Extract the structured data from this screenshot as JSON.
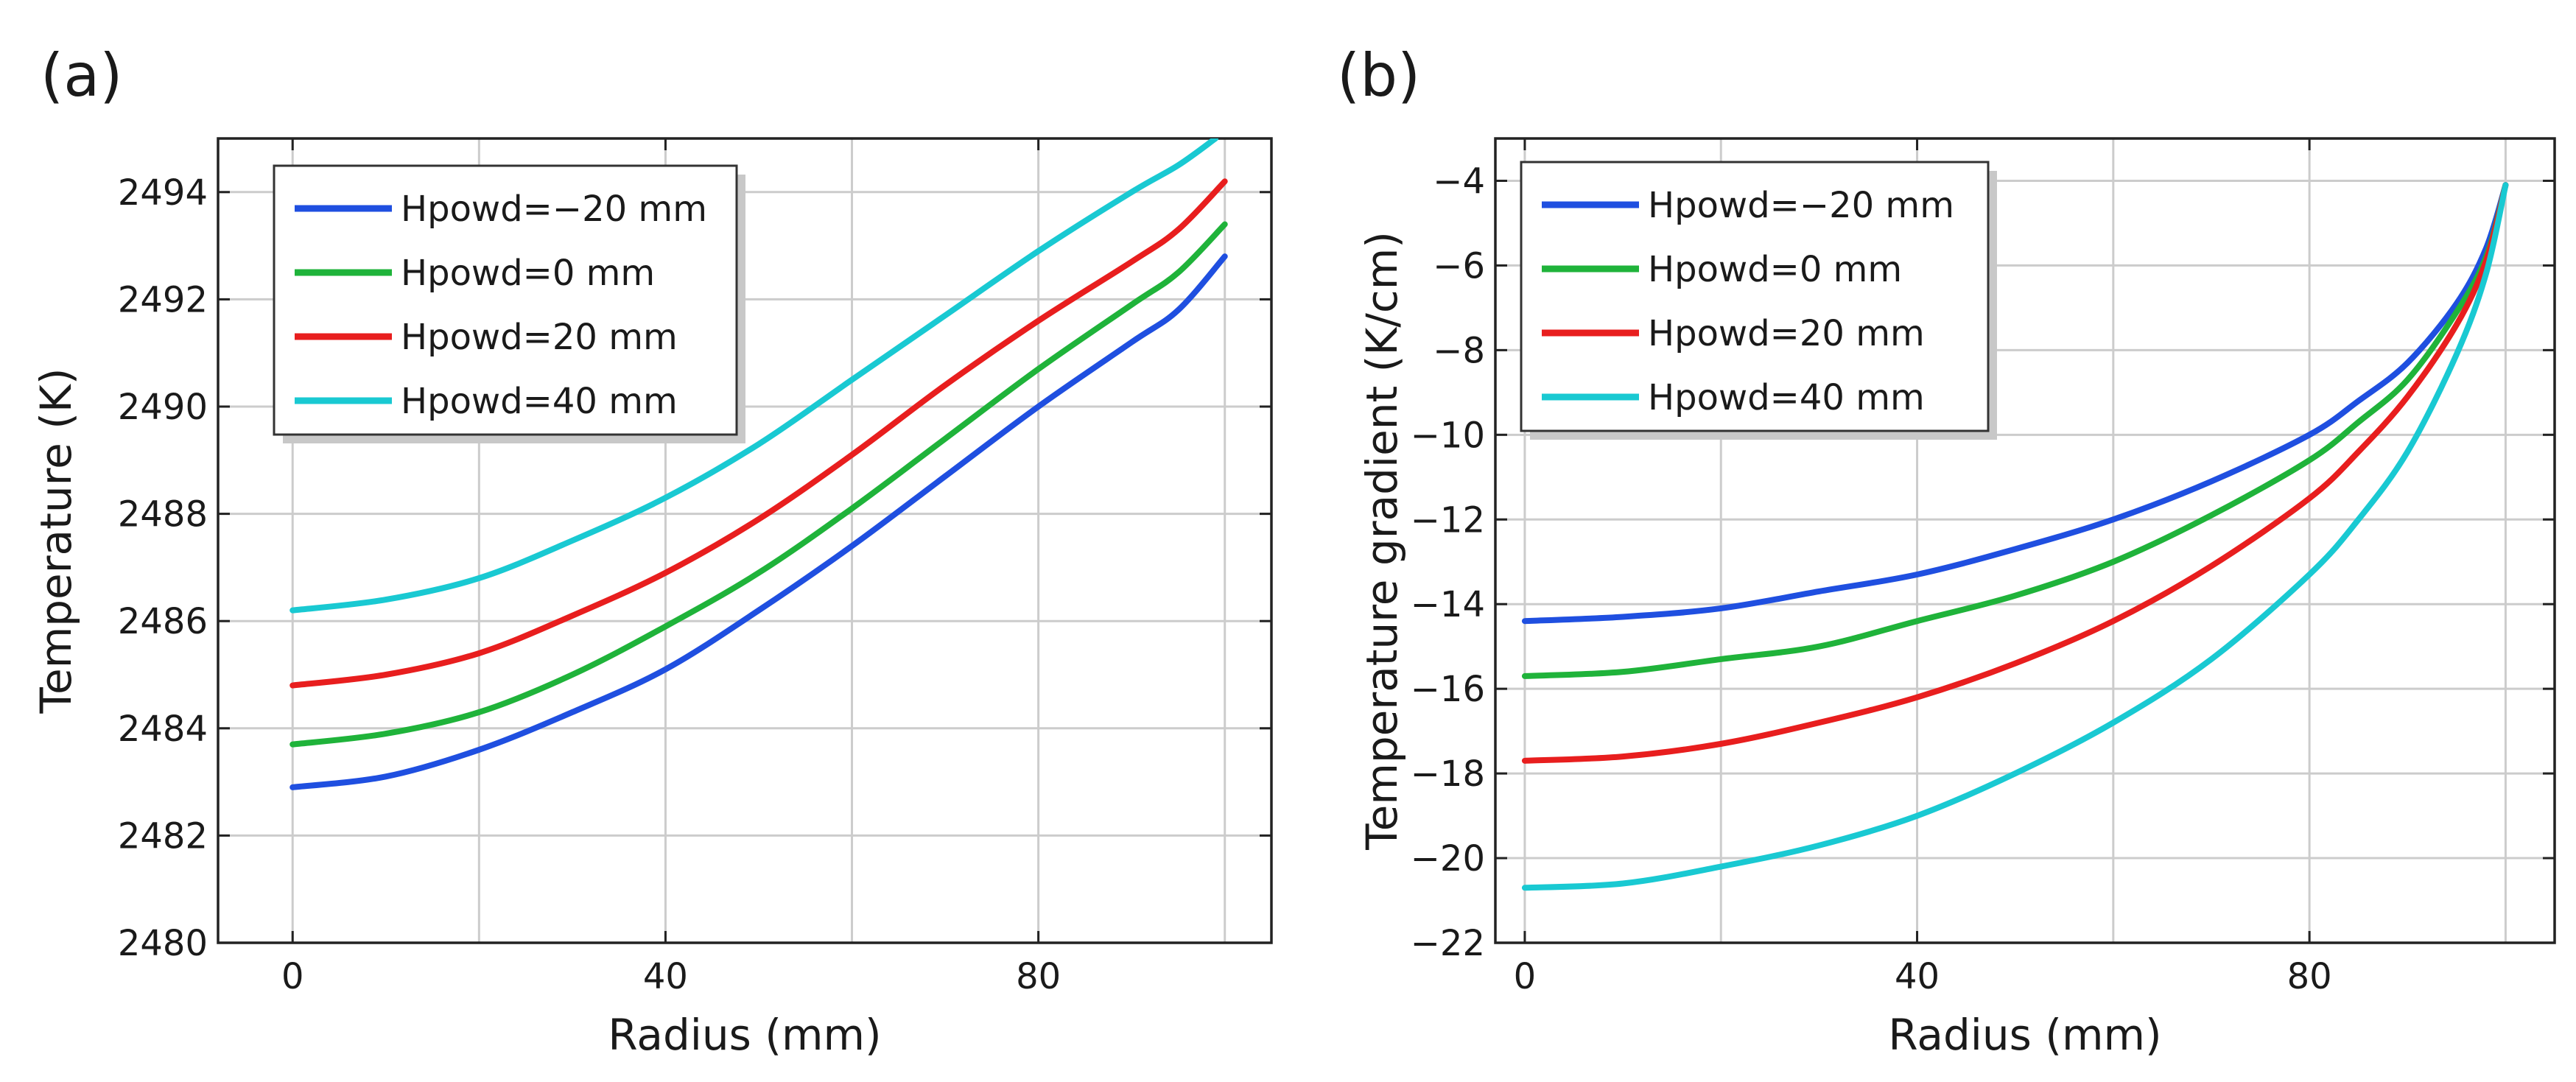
{
  "chart_data": [
    {
      "type": "line",
      "panel_label": "(a)",
      "xlabel": "Radius (mm)",
      "ylabel": "Temperature (K)",
      "xlim": [
        -8,
        105
      ],
      "ylim": [
        2480,
        2495
      ],
      "xticks": [
        0,
        40,
        80
      ],
      "yticks": [
        2480,
        2482,
        2484,
        2486,
        2488,
        2490,
        2492,
        2494
      ],
      "grid": true,
      "legend_position": "top-left",
      "series": [
        {
          "name": "Hpowd=−20 mm",
          "color": "#1f4fe0",
          "x": [
            0,
            10,
            20,
            30,
            40,
            50,
            60,
            70,
            80,
            90,
            95,
            100
          ],
          "y": [
            2482.9,
            2483.1,
            2483.6,
            2484.3,
            2485.1,
            2486.2,
            2487.4,
            2488.7,
            2490.0,
            2491.2,
            2491.8,
            2492.8
          ]
        },
        {
          "name": "Hpowd=0 mm",
          "color": "#1fb33a",
          "x": [
            0,
            10,
            20,
            30,
            40,
            50,
            60,
            70,
            80,
            90,
            95,
            100
          ],
          "y": [
            2483.7,
            2483.9,
            2484.3,
            2485.0,
            2485.9,
            2486.9,
            2488.1,
            2489.4,
            2490.7,
            2491.9,
            2492.5,
            2493.4
          ]
        },
        {
          "name": "Hpowd=20 mm",
          "color": "#e81e1e",
          "x": [
            0,
            10,
            20,
            30,
            40,
            50,
            60,
            70,
            80,
            90,
            95,
            100
          ],
          "y": [
            2484.8,
            2485.0,
            2485.4,
            2486.1,
            2486.9,
            2487.9,
            2489.1,
            2490.4,
            2491.6,
            2492.7,
            2493.3,
            2494.2
          ]
        },
        {
          "name": "Hpowd=40 mm",
          "color": "#19c9d2",
          "x": [
            0,
            10,
            20,
            30,
            40,
            50,
            60,
            70,
            80,
            90,
            95,
            99
          ],
          "y": [
            2486.2,
            2486.4,
            2486.8,
            2487.5,
            2488.3,
            2489.3,
            2490.5,
            2491.7,
            2492.9,
            2494.0,
            2494.5,
            2495.0
          ]
        }
      ]
    },
    {
      "type": "line",
      "panel_label": "(b)",
      "xlabel": "Radius (mm)",
      "ylabel": "Temperature gradient (K/cm)",
      "xlim": [
        -3,
        105
      ],
      "ylim": [
        -22,
        -3
      ],
      "xticks": [
        0,
        40,
        80
      ],
      "yticks": [
        -22,
        -20,
        -18,
        -16,
        -14,
        -12,
        -10,
        -8,
        -6,
        -4
      ],
      "grid": true,
      "legend_position": "top-left",
      "series": [
        {
          "name": "Hpowd=−20 mm",
          "color": "#1f4fe0",
          "x": [
            0,
            10,
            20,
            30,
            40,
            50,
            60,
            70,
            80,
            85,
            90,
            95,
            98,
            100
          ],
          "y": [
            -14.4,
            -14.3,
            -14.1,
            -13.7,
            -13.3,
            -12.7,
            -12.0,
            -11.1,
            -10.0,
            -9.2,
            -8.3,
            -6.9,
            -5.6,
            -4.1
          ]
        },
        {
          "name": "Hpowd=0 mm",
          "color": "#1fb33a",
          "x": [
            0,
            10,
            20,
            30,
            40,
            50,
            60,
            70,
            80,
            85,
            90,
            95,
            98,
            100
          ],
          "y": [
            -15.7,
            -15.6,
            -15.3,
            -15.0,
            -14.4,
            -13.8,
            -13.0,
            -11.9,
            -10.6,
            -9.7,
            -8.7,
            -7.1,
            -5.8,
            -4.1
          ]
        },
        {
          "name": "Hpowd=20 mm",
          "color": "#e81e1e",
          "x": [
            0,
            10,
            20,
            30,
            40,
            50,
            60,
            70,
            80,
            85,
            90,
            95,
            98,
            100
          ],
          "y": [
            -17.7,
            -17.6,
            -17.3,
            -16.8,
            -16.2,
            -15.4,
            -14.4,
            -13.1,
            -11.5,
            -10.4,
            -9.1,
            -7.4,
            -5.9,
            -4.1
          ]
        },
        {
          "name": "Hpowd=40 mm",
          "color": "#19c9d2",
          "x": [
            0,
            10,
            20,
            30,
            40,
            50,
            60,
            70,
            80,
            85,
            90,
            95,
            98,
            100
          ],
          "y": [
            -20.7,
            -20.6,
            -20.2,
            -19.7,
            -19.0,
            -18.0,
            -16.8,
            -15.3,
            -13.3,
            -12.0,
            -10.4,
            -8.1,
            -6.2,
            -4.1
          ]
        }
      ]
    }
  ]
}
